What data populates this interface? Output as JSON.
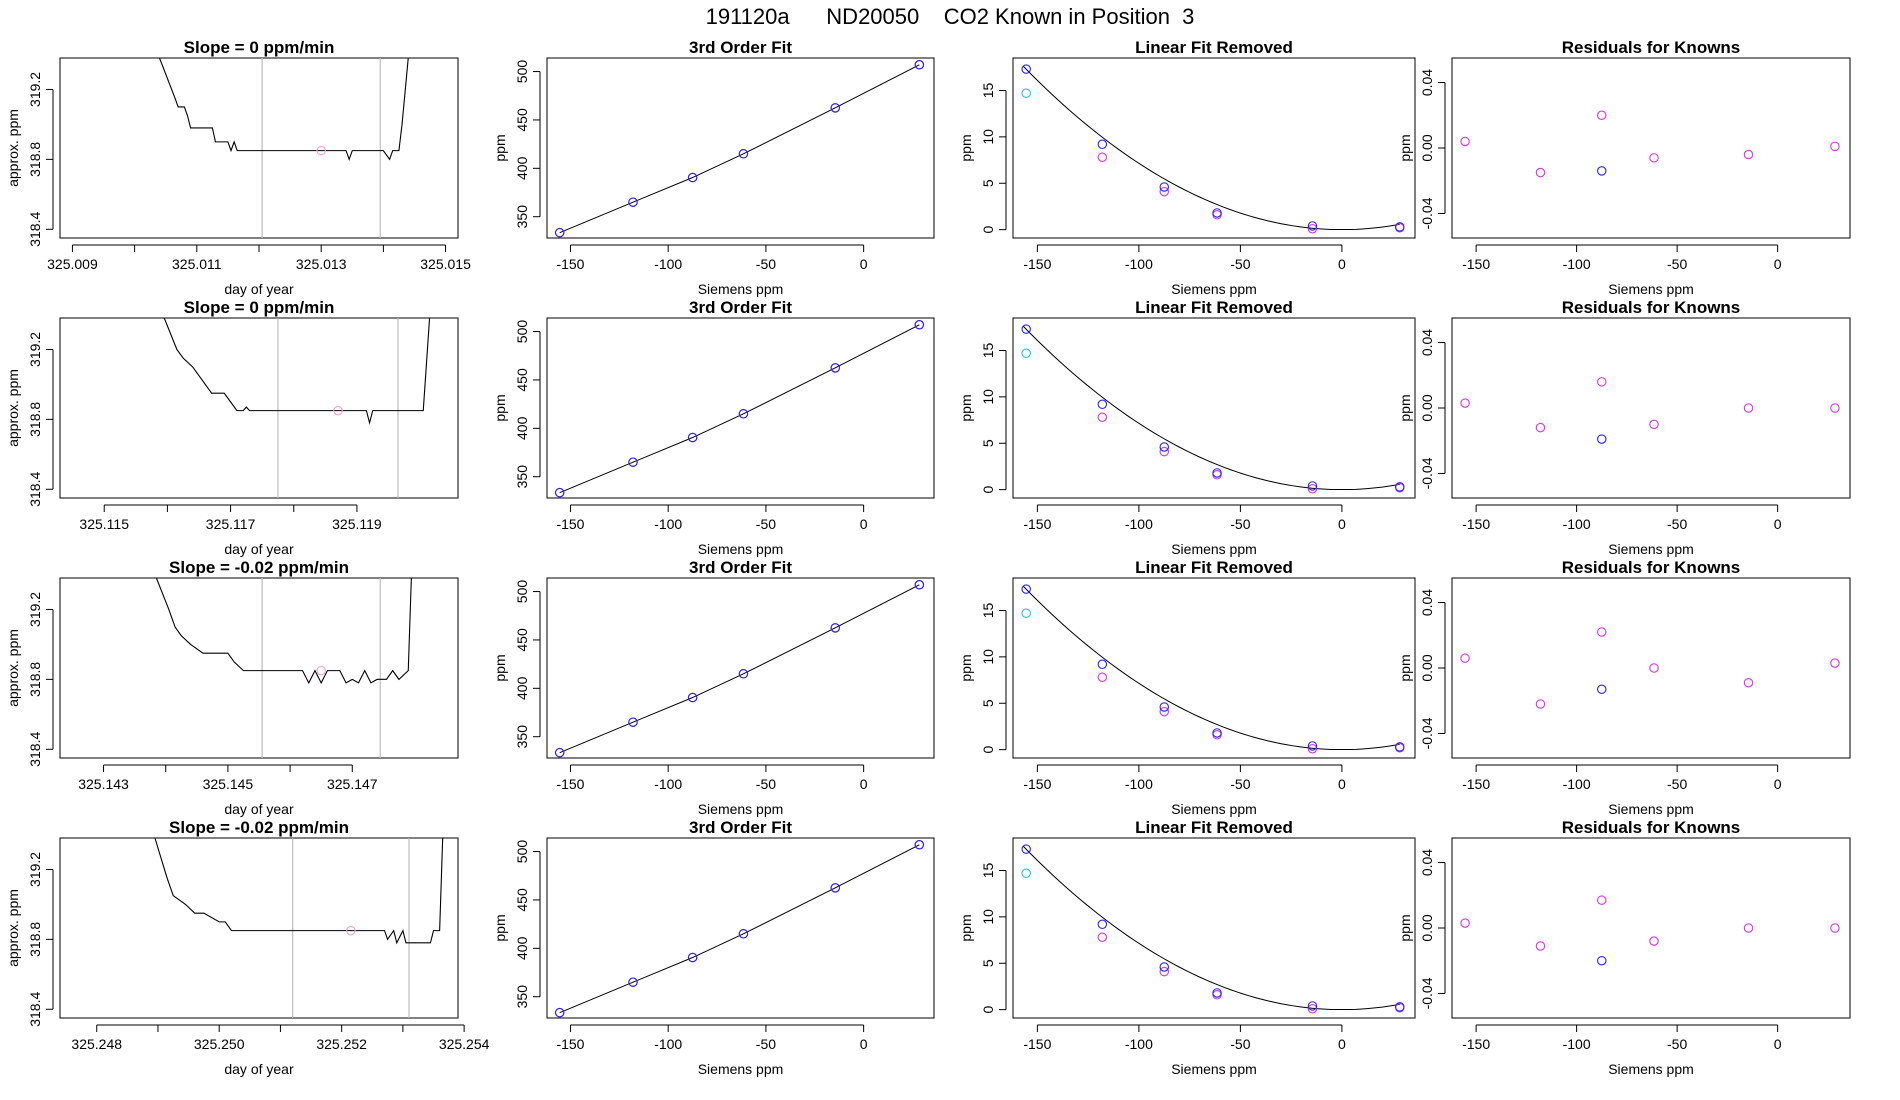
{
  "page_title": "191120a      ND20050    CO2 Known in Position  3",
  "colors": {
    "blue": "#2424f0",
    "magenta": "#d633e8",
    "cyan": "#21c4d6",
    "gray": "#bdbdbd",
    "pink": "#f5a0c8",
    "line": "#000000"
  },
  "labels": {
    "siemens": "Siemens ppm",
    "ppm": "ppm",
    "approx": "approx. ppm",
    "doy": "day of year",
    "fit": "3rd Order Fit",
    "linrem": "Linear Fit Removed",
    "resid": "Residuals for Knowns"
  },
  "chart_data": [
    {
      "row": 0,
      "type": "line",
      "title": "Slope =  0  ppm/min",
      "xlabel": "day of year",
      "ylabel": "approx. ppm",
      "xlim": [
        325.0088,
        325.0152
      ],
      "ylim": [
        318.35,
        319.38
      ],
      "xticks": [
        "325.009",
        "325.011",
        "325.013",
        "325.015"
      ],
      "yticks": [
        "318.4",
        "318.8",
        "319.2"
      ],
      "vlines": [
        325.01205,
        325.01395
      ],
      "marker": [
        325.013,
        318.85
      ],
      "x": [
        325.0104,
        325.01065,
        325.0107,
        325.0108,
        325.01085,
        325.0109,
        325.0111,
        325.01125,
        325.0113,
        325.0115,
        325.01155,
        325.0116,
        325.01165,
        325.0134,
        325.01345,
        325.0135,
        325.01355,
        325.014,
        325.0141,
        325.01415,
        325.0142,
        325.01425,
        325.0143,
        325.0144
      ],
      "y": [
        319.38,
        319.15,
        319.1,
        319.1,
        319.05,
        318.98,
        318.98,
        318.98,
        318.9,
        318.9,
        318.85,
        318.9,
        318.85,
        318.85,
        318.8,
        318.85,
        318.85,
        318.85,
        318.8,
        318.85,
        318.85,
        318.85,
        319.0,
        319.38
      ]
    },
    {
      "row": 1,
      "type": "line",
      "title": "Slope =  0  ppm/min",
      "xlabel": "day of year",
      "ylabel": "approx. ppm",
      "xlim": [
        325.1143,
        325.1206
      ],
      "ylim": [
        318.35,
        319.38
      ],
      "xticks": [
        "325.115",
        "325.117",
        "325.119"
      ],
      "yticks": [
        "318.4",
        "318.8",
        "319.2"
      ],
      "vlines": [
        325.11775,
        325.11965
      ],
      "marker": [
        325.1187,
        318.85
      ],
      "x": [
        325.11595,
        325.11615,
        325.11625,
        325.1164,
        325.1165,
        325.1166,
        325.1167,
        325.1169,
        325.117,
        325.1171,
        325.1172,
        325.11725,
        325.1173,
        325.11915,
        325.1192,
        325.11925,
        325.1193,
        325.11955,
        325.12005,
        325.12015
      ],
      "y": [
        319.38,
        319.2,
        319.15,
        319.1,
        319.05,
        319.0,
        318.95,
        318.95,
        318.9,
        318.85,
        318.85,
        318.87,
        318.85,
        318.85,
        318.78,
        318.85,
        318.85,
        318.85,
        318.85,
        319.38
      ]
    },
    {
      "row": 2,
      "type": "line",
      "title": "Slope =  -0.02  ppm/min",
      "xlabel": "day of year",
      "ylabel": "approx. ppm",
      "xlim": [
        325.1423,
        325.1487
      ],
      "ylim": [
        318.35,
        319.38
      ],
      "xticks": [
        "325.143",
        "325.145",
        "325.147"
      ],
      "yticks": [
        "318.4",
        "318.8",
        "319.2"
      ],
      "vlines": [
        325.14555,
        325.14745
      ],
      "marker": [
        325.1465,
        318.85
      ],
      "x": [
        325.14385,
        325.14405,
        325.14415,
        325.14425,
        325.1444,
        325.1446,
        325.1448,
        325.145,
        325.1451,
        325.14525,
        325.1462,
        325.1463,
        325.1464,
        325.1465,
        325.1466,
        325.1468,
        325.1469,
        325.147,
        325.1471,
        325.1472,
        325.1473,
        325.1474,
        325.14755,
        325.14765,
        325.14775,
        325.1479,
        325.14795
      ],
      "y": [
        319.38,
        319.2,
        319.1,
        319.05,
        319.0,
        318.95,
        318.95,
        318.95,
        318.9,
        318.85,
        318.85,
        318.78,
        318.85,
        318.78,
        318.85,
        318.85,
        318.78,
        318.8,
        318.78,
        318.85,
        318.78,
        318.8,
        318.8,
        318.85,
        318.8,
        318.85,
        319.38
      ]
    },
    {
      "row": 3,
      "type": "line",
      "title": "Slope =  -0.02  ppm/min",
      "xlabel": "day of year",
      "ylabel": "approx. ppm",
      "xlim": [
        325.2474,
        325.2539
      ],
      "ylim": [
        318.35,
        319.38
      ],
      "xticks": [
        "325.248",
        "325.250",
        "325.252",
        "325.254"
      ],
      "yticks": [
        "318.4",
        "318.8",
        "319.2"
      ],
      "vlines": [
        325.2512,
        325.2531
      ],
      "marker": [
        325.25215,
        318.85
      ],
      "x": [
        325.24895,
        325.24915,
        325.24925,
        325.24945,
        325.2496,
        325.24975,
        325.25,
        325.2501,
        325.2502,
        325.2504,
        325.2527,
        325.25275,
        325.25285,
        325.2529,
        325.253,
        325.25305,
        325.25345,
        325.2535,
        325.2536,
        325.25365
      ],
      "y": [
        319.38,
        319.15,
        319.05,
        319.0,
        318.95,
        318.95,
        318.9,
        318.9,
        318.85,
        318.85,
        318.85,
        318.8,
        318.85,
        318.78,
        318.85,
        318.78,
        318.78,
        318.85,
        318.85,
        319.38
      ]
    }
  ],
  "fit_charts": [
    {
      "title": "3rd Order Fit",
      "xlabel": "Siemens ppm",
      "ylabel": "ppm",
      "xlim": [
        -162,
        36
      ],
      "ylim": [
        328,
        514
      ],
      "xticks": [
        "-150",
        "-100",
        "-50",
        "0"
      ],
      "yticks": [
        "350",
        "400",
        "450",
        "500"
      ],
      "points_x": [
        -155.5,
        -118,
        -87.5,
        -61.5,
        -14.5,
        28.5
      ],
      "points_y": [
        333.5,
        365.0,
        390.5,
        415.0,
        462.5,
        507.0
      ],
      "curve": [
        [
          -155.5,
          333.5
        ],
        [
          -118,
          365.0
        ],
        [
          -87.5,
          390.5
        ],
        [
          -61.5,
          415.0
        ],
        [
          -14.5,
          462.5
        ],
        [
          28.5,
          507.0
        ]
      ]
    }
  ],
  "linrem_charts": [
    {
      "title": "Linear Fit Removed",
      "xlabel": "Siemens ppm",
      "ylabel": "ppm",
      "xlim": [
        -162,
        36
      ],
      "ylim": [
        -0.9,
        18.5
      ],
      "xticks": [
        "-150",
        "-100",
        "-50",
        "0"
      ],
      "yticks": [
        "0",
        "5",
        "10",
        "15"
      ],
      "blue_x": [
        -155.5,
        -118,
        -87.5,
        -61.5,
        -14.5,
        28.5
      ],
      "blue_y": [
        17.3,
        9.2,
        4.6,
        1.8,
        0.4,
        0.3
      ],
      "mag_x": [
        -118,
        -87.5,
        -61.5,
        -14.5,
        28.5
      ],
      "mag_y": [
        7.8,
        4.1,
        1.6,
        0.1,
        0.2
      ],
      "cyan_x": [
        -155.5
      ],
      "cyan_y": [
        14.7
      ]
    }
  ],
  "resid_charts": [
    {
      "title": "Residuals for Knowns",
      "xlabel": "Siemens ppm",
      "ylabel": "ppm",
      "xlim": [
        -162,
        36
      ],
      "ylim": [
        -0.055,
        0.055
      ],
      "xticks": [
        "-150",
        "-100",
        "-50",
        "0"
      ],
      "yticks": [
        "-0.04",
        "0.00",
        "0.04"
      ],
      "rows": [
        {
          "blue": [
            -87.5,
            -0.014
          ],
          "mag_x": [
            -155.5,
            -118,
            -87.5,
            -61.5,
            -14.5,
            28.5
          ],
          "mag_y": [
            0.004,
            -0.015,
            0.02,
            -0.006,
            -0.004,
            0.001
          ]
        },
        {
          "blue": [
            -87.5,
            -0.019
          ],
          "mag_x": [
            -155.5,
            -118,
            -87.5,
            -61.5,
            -14.5,
            28.5
          ],
          "mag_y": [
            0.003,
            -0.012,
            0.016,
            -0.01,
            0.0,
            0.0
          ]
        },
        {
          "blue": [
            -87.5,
            -0.013
          ],
          "mag_x": [
            -155.5,
            -118,
            -87.5,
            -61.5,
            -14.5,
            28.5
          ],
          "mag_y": [
            0.006,
            -0.022,
            0.022,
            0.0,
            -0.009,
            0.003
          ]
        },
        {
          "blue": [
            -87.5,
            -0.02
          ],
          "mag_x": [
            -155.5,
            -118,
            -87.5,
            -61.5,
            -14.5,
            28.5
          ],
          "mag_y": [
            0.003,
            -0.011,
            0.017,
            -0.008,
            0.0,
            0.0
          ]
        }
      ]
    }
  ]
}
